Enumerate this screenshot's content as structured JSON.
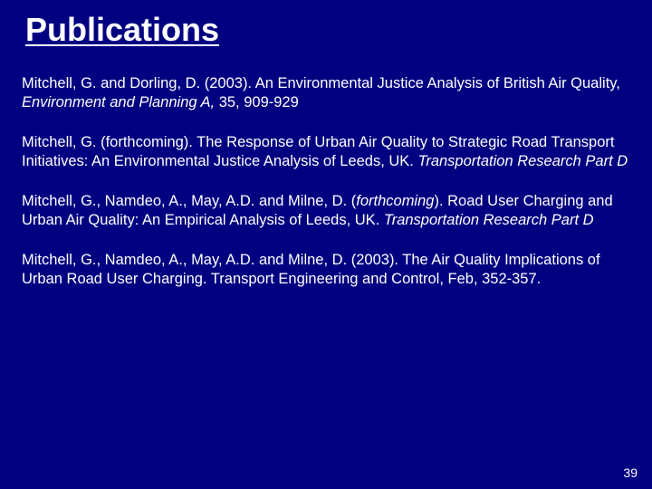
{
  "background_color": "#000080",
  "text_color": "#ffffff",
  "title": "Publications",
  "title_fontsize": 36,
  "body_fontsize": 16.5,
  "page_number": "39",
  "publications": [
    {
      "plain1": "Mitchell, G. and Dorling, D. (2003). An Environmental Justice Analysis of British Air Quality, ",
      "italic": "Environment and Planning A,",
      "plain2": " 35, 909-929"
    },
    {
      "plain1": "Mitchell, G. (forthcoming). The Response of Urban Air Quality to Strategic Road Transport Initiatives: An Environmental Justice Analysis of Leeds, UK. ",
      "italic": "Transportation Research Part D",
      "plain2": ""
    },
    {
      "plain1": "Mitchell, G., Namdeo, A., May, A.D. and Milne, D. (",
      "italic": "forthcoming",
      "plain2": "). Road User Charging and Urban Air Quality: An Empirical Analysis of Leeds, UK. ",
      "italic2": "Transportation Research Part D",
      "plain3": ""
    },
    {
      "plain1": "Mitchell, G., Namdeo, A., May, A.D. and Milne, D. (2003). The Air Quality Implications of Urban Road User Charging. Transport Engineering and Control, Feb, 352-357.",
      "italic": "",
      "plain2": ""
    }
  ]
}
